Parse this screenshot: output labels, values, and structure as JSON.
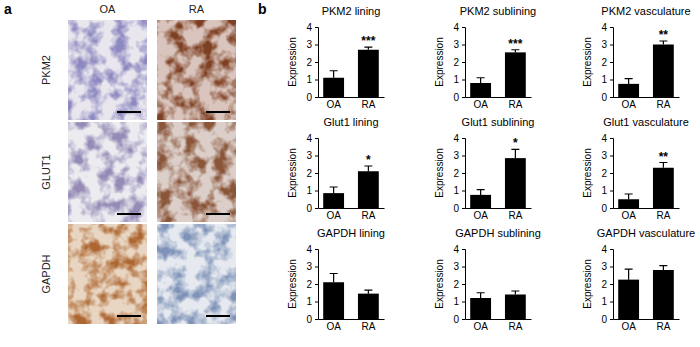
{
  "panel_labels": [
    "a",
    "b"
  ],
  "images": {
    "columns": [
      "OA",
      "RA"
    ],
    "rows": [
      "PKM2",
      "GLUT1",
      "GAPDH"
    ]
  },
  "chart_data": [
    {
      "type": "bar",
      "title": "PKM2 lining",
      "y_label": "Expression",
      "categories": [
        "OA",
        "RA"
      ],
      "values": [
        1.1,
        2.7
      ],
      "errors": [
        0.4,
        0.15
      ],
      "color": "#000000",
      "ylim": [
        0,
        4
      ],
      "yticks": [
        0,
        1,
        2,
        3,
        4
      ],
      "annotations": [
        {
          "text": "***",
          "x": "RA"
        }
      ]
    },
    {
      "type": "bar",
      "title": "PKM2 sublining",
      "y_label": "Expression",
      "categories": [
        "OA",
        "RA"
      ],
      "values": [
        0.8,
        2.55
      ],
      "errors": [
        0.3,
        0.15
      ],
      "color": "#000000",
      "ylim": [
        0,
        4
      ],
      "yticks": [
        0,
        1,
        2,
        3,
        4
      ],
      "annotations": [
        {
          "text": "***",
          "x": "RA"
        }
      ]
    },
    {
      "type": "bar",
      "title": "PKM2 vasculature",
      "y_label": "Expression",
      "categories": [
        "OA",
        "RA"
      ],
      "values": [
        0.75,
        3.0
      ],
      "errors": [
        0.3,
        0.2
      ],
      "color": "#000000",
      "ylim": [
        0,
        4
      ],
      "yticks": [
        0,
        1,
        2,
        3,
        4
      ],
      "annotations": [
        {
          "text": "**",
          "x": "RA"
        }
      ]
    },
    {
      "type": "bar",
      "title": "Glut1 lining",
      "y_label": "Expression",
      "categories": [
        "OA",
        "RA"
      ],
      "values": [
        0.85,
        2.1
      ],
      "errors": [
        0.35,
        0.3
      ],
      "color": "#000000",
      "ylim": [
        0,
        4
      ],
      "yticks": [
        0,
        1,
        2,
        3,
        4
      ],
      "annotations": [
        {
          "text": "*",
          "x": "RA"
        }
      ]
    },
    {
      "type": "bar",
      "title": "Glut1 sublining",
      "y_label": "Expression",
      "categories": [
        "OA",
        "RA"
      ],
      "values": [
        0.75,
        2.85
      ],
      "errors": [
        0.3,
        0.5
      ],
      "color": "#000000",
      "ylim": [
        0,
        4
      ],
      "yticks": [
        0,
        1,
        2,
        3,
        4
      ],
      "annotations": [
        {
          "text": "*",
          "x": "RA"
        }
      ]
    },
    {
      "type": "bar",
      "title": "Glut1 vasculature",
      "y_label": "Expression",
      "categories": [
        "OA",
        "RA"
      ],
      "values": [
        0.5,
        2.3
      ],
      "errors": [
        0.3,
        0.3
      ],
      "color": "#000000",
      "ylim": [
        0,
        4
      ],
      "yticks": [
        0,
        1,
        2,
        3,
        4
      ],
      "annotations": [
        {
          "text": "**",
          "x": "RA"
        }
      ]
    },
    {
      "type": "bar",
      "title": "GAPDH lining",
      "y_label": "Expression",
      "categories": [
        "OA",
        "RA"
      ],
      "values": [
        2.1,
        1.45
      ],
      "errors": [
        0.5,
        0.2
      ],
      "color": "#000000",
      "ylim": [
        0,
        4
      ],
      "yticks": [
        0,
        1,
        2,
        3,
        4
      ]
    },
    {
      "type": "bar",
      "title": "GAPDH sublining",
      "y_label": "Expression",
      "categories": [
        "OA",
        "RA"
      ],
      "values": [
        1.2,
        1.4
      ],
      "errors": [
        0.3,
        0.2
      ],
      "color": "#000000",
      "ylim": [
        0,
        4
      ],
      "yticks": [
        0,
        1,
        2,
        3,
        4
      ]
    },
    {
      "type": "bar",
      "title": "GAPDH vasculature",
      "y_label": "Expression",
      "categories": [
        "OA",
        "RA"
      ],
      "values": [
        2.25,
        2.8
      ],
      "errors": [
        0.6,
        0.25
      ],
      "color": "#000000",
      "ylim": [
        0,
        4
      ],
      "yticks": [
        0,
        1,
        2,
        3,
        4
      ]
    }
  ]
}
